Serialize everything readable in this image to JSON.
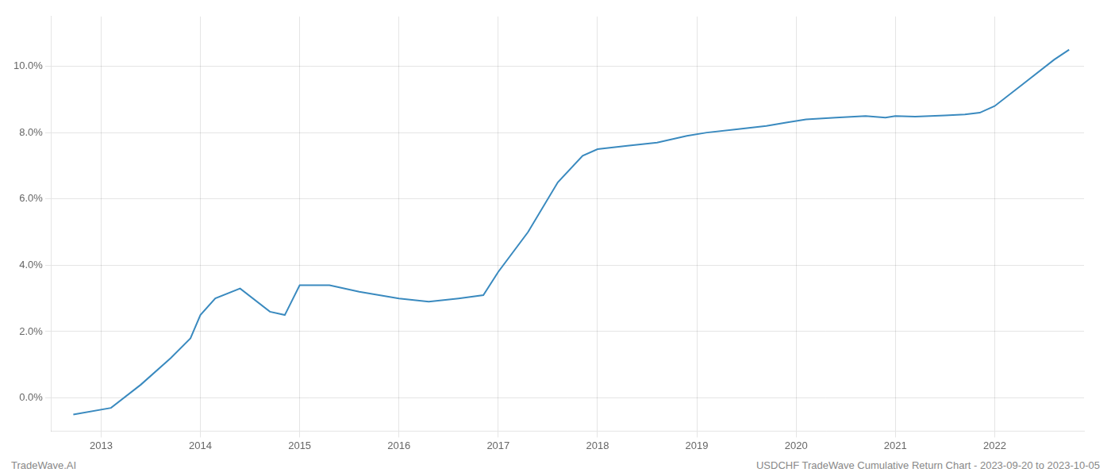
{
  "chart_data": {
    "type": "line",
    "x": [
      2012.72,
      2013.1,
      2013.4,
      2013.7,
      2013.9,
      2014.0,
      2014.15,
      2014.4,
      2014.7,
      2014.85,
      2015.0,
      2015.3,
      2015.6,
      2015.8,
      2016.0,
      2016.3,
      2016.6,
      2016.85,
      2017.0,
      2017.3,
      2017.6,
      2017.85,
      2018.0,
      2018.3,
      2018.6,
      2018.9,
      2019.1,
      2019.4,
      2019.7,
      2019.9,
      2020.1,
      2020.4,
      2020.7,
      2020.9,
      2021.0,
      2021.2,
      2021.5,
      2021.7,
      2021.85,
      2022.0,
      2022.3,
      2022.6,
      2022.75
    ],
    "values": [
      -0.005,
      -0.003,
      0.004,
      0.012,
      0.018,
      0.025,
      0.03,
      0.033,
      0.026,
      0.025,
      0.034,
      0.034,
      0.032,
      0.031,
      0.03,
      0.029,
      0.03,
      0.031,
      0.038,
      0.05,
      0.065,
      0.073,
      0.075,
      0.076,
      0.077,
      0.079,
      0.08,
      0.081,
      0.082,
      0.083,
      0.084,
      0.0845,
      0.085,
      0.0845,
      0.085,
      0.0848,
      0.0852,
      0.0855,
      0.086,
      0.088,
      0.095,
      0.102,
      0.105
    ],
    "color": "#3a8abf",
    "xlim": [
      2012.5,
      2022.9
    ],
    "ylim": [
      -0.01,
      0.115
    ],
    "xticks": [
      2013,
      2014,
      2015,
      2016,
      2017,
      2018,
      2019,
      2020,
      2021,
      2022
    ],
    "yticks": [
      {
        "value": 0.0,
        "label": "0.0%"
      },
      {
        "value": 0.02,
        "label": "2.0%"
      },
      {
        "value": 0.04,
        "label": "4.0%"
      },
      {
        "value": 0.06,
        "label": "6.0%"
      },
      {
        "value": 0.08,
        "label": "8.0%"
      },
      {
        "value": 0.1,
        "label": "10.0%"
      }
    ],
    "grid": true,
    "annotations": [
      "TradeWave.AI",
      "USDCHF TradeWave Cumulative Return Chart - 2023-09-20 to 2023-10-05"
    ]
  }
}
